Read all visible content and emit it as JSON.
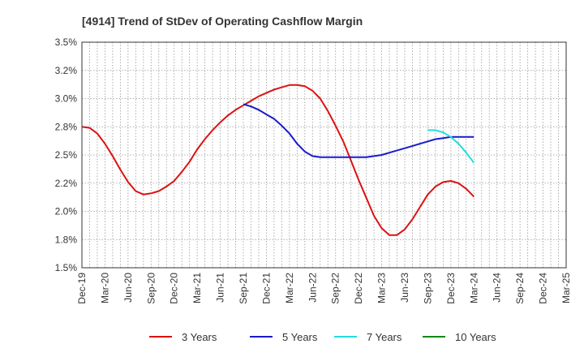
{
  "chart_data": {
    "type": "line",
    "title": "[4914]  Trend of StDev of Operating Cashflow Margin",
    "xlabel": "",
    "ylabel": "",
    "x_ticks": [
      "Dec-19",
      "Mar-20",
      "Jun-20",
      "Sep-20",
      "Dec-20",
      "Mar-21",
      "Jun-21",
      "Sep-21",
      "Dec-21",
      "Mar-22",
      "Jun-22",
      "Sep-22",
      "Dec-22",
      "Mar-23",
      "Jun-23",
      "Sep-23",
      "Dec-23",
      "Mar-24",
      "Jun-24",
      "Sep-24",
      "Dec-24",
      "Mar-25"
    ],
    "y_ticks": [
      "1.5%",
      "1.8%",
      "2.0%",
      "2.2%",
      "2.5%",
      "2.8%",
      "3.0%",
      "3.2%",
      "3.5%"
    ],
    "ylim": [
      1.5,
      3.5
    ],
    "grid": true,
    "legend_position": "bottom",
    "series": [
      {
        "name": "3 Years",
        "color": "#dd1111",
        "x": [
          "Dec-19",
          "Jan-20",
          "Feb-20",
          "Mar-20",
          "Apr-20",
          "May-20",
          "Jun-20",
          "Jul-20",
          "Aug-20",
          "Sep-20",
          "Oct-20",
          "Nov-20",
          "Dec-20",
          "Jan-21",
          "Feb-21",
          "Mar-21",
          "Apr-21",
          "May-21",
          "Jun-21",
          "Jul-21",
          "Aug-21",
          "Sep-21",
          "Oct-21",
          "Nov-21",
          "Dec-21",
          "Jan-22",
          "Feb-22",
          "Mar-22",
          "Apr-22",
          "May-22",
          "Jun-22",
          "Jul-22",
          "Aug-22",
          "Sep-22",
          "Oct-22",
          "Nov-22",
          "Dec-22",
          "Jan-23",
          "Feb-23",
          "Mar-23",
          "Apr-23",
          "May-23",
          "Jun-23",
          "Jul-23",
          "Aug-23",
          "Sep-23",
          "Oct-23",
          "Nov-23",
          "Dec-23",
          "Jan-24",
          "Feb-24",
          "Mar-24"
        ],
        "values": [
          2.75,
          2.74,
          2.69,
          2.6,
          2.49,
          2.37,
          2.26,
          2.18,
          2.15,
          2.16,
          2.18,
          2.22,
          2.27,
          2.35,
          2.44,
          2.55,
          2.64,
          2.72,
          2.79,
          2.85,
          2.9,
          2.94,
          2.98,
          3.02,
          3.05,
          3.08,
          3.1,
          3.12,
          3.12,
          3.11,
          3.07,
          3.0,
          2.89,
          2.76,
          2.62,
          2.45,
          2.28,
          2.12,
          1.96,
          1.85,
          1.79,
          1.79,
          1.84,
          1.93,
          2.04,
          2.15,
          2.22,
          2.26,
          2.27,
          2.25,
          2.2,
          2.13
        ]
      },
      {
        "name": "5 Years",
        "color": "#1a1acc",
        "x": [
          "Sep-21",
          "Oct-21",
          "Nov-21",
          "Dec-21",
          "Jan-22",
          "Feb-22",
          "Mar-22",
          "Apr-22",
          "May-22",
          "Jun-22",
          "Jul-22",
          "Aug-22",
          "Sep-22",
          "Oct-22",
          "Nov-22",
          "Dec-22",
          "Jan-23",
          "Feb-23",
          "Mar-23",
          "Apr-23",
          "May-23",
          "Jun-23",
          "Jul-23",
          "Aug-23",
          "Sep-23",
          "Oct-23",
          "Nov-23",
          "Dec-23",
          "Jan-24",
          "Feb-24",
          "Mar-24"
        ],
        "values": [
          2.95,
          2.93,
          2.9,
          2.86,
          2.82,
          2.76,
          2.69,
          2.6,
          2.53,
          2.49,
          2.48,
          2.48,
          2.48,
          2.48,
          2.48,
          2.48,
          2.48,
          2.49,
          2.5,
          2.52,
          2.54,
          2.56,
          2.58,
          2.6,
          2.62,
          2.64,
          2.65,
          2.66,
          2.66,
          2.66,
          2.66
        ]
      },
      {
        "name": "7 Years",
        "color": "#22dddd",
        "x": [
          "Sep-23",
          "Oct-23",
          "Nov-23",
          "Dec-23",
          "Jan-24",
          "Feb-24",
          "Mar-24"
        ],
        "values": [
          2.72,
          2.72,
          2.7,
          2.66,
          2.6,
          2.52,
          2.43
        ]
      },
      {
        "name": "10 Years",
        "color": "#118811",
        "x": [],
        "values": []
      }
    ]
  }
}
